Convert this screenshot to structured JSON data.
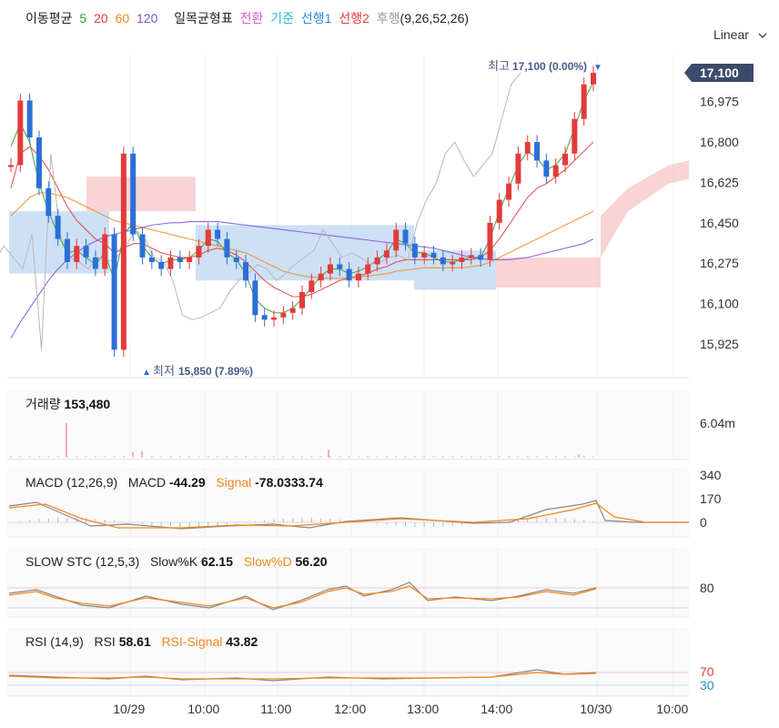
{
  "legend": {
    "ma_title": "이동평균",
    "ma_periods": [
      {
        "label": "5",
        "color": "#2e9e2e"
      },
      {
        "label": "20",
        "color": "#e23b3b"
      },
      {
        "label": "60",
        "color": "#f08a1e"
      },
      {
        "label": "120",
        "color": "#7b4fe0"
      }
    ],
    "ichimoku_title": "일목균형표",
    "ichimoku_items": [
      {
        "label": "전환",
        "color": "#e05ad3"
      },
      {
        "label": "기준",
        "color": "#2bb6d6"
      },
      {
        "label": "선행1",
        "color": "#2b8ad6"
      },
      {
        "label": "선행2",
        "color": "#e23b3b"
      },
      {
        "label": "후행",
        "color": "#9a9a9a"
      }
    ],
    "ichimoku_params": "(9,26,52,26)"
  },
  "scale_button": "Linear",
  "price_axis": {
    "ticks": [
      "17,100",
      "16,975",
      "16,800",
      "16,625",
      "16,450",
      "16,275",
      "16,100",
      "15,925"
    ],
    "current_price_label": "17,100",
    "current_price_color": "#3c4a6b"
  },
  "annotations": {
    "high_label": "최고",
    "high_value": "17,100 (0.00%)",
    "high_marker": "▼",
    "low_label": "최저",
    "low_value": "15,850 (7.89%)",
    "low_marker": "▲"
  },
  "volume_pane": {
    "title": "거래량",
    "value": "153,480",
    "axis_label": "6.04m"
  },
  "macd_pane": {
    "title": "MACD (12,26,9)",
    "macd_label": "MACD",
    "macd_value": "-44.29",
    "signal_label": "Signal",
    "signal_value": "-78.0333.74",
    "axis_ticks": [
      "340",
      "170",
      "0"
    ]
  },
  "stoch_pane": {
    "title": "SLOW STC (12,5,3)",
    "k_label": "Slow%K",
    "k_value": "62.15",
    "d_label": "Slow%D",
    "d_value": "56.20",
    "axis_ticks": [
      "80"
    ]
  },
  "rsi_pane": {
    "title": "RSI (14,9)",
    "rsi_label": "RSI",
    "rsi_value": "58.61",
    "signal_label": "RSI-Signal",
    "signal_value": "43.82",
    "axis_ticks": [
      "70",
      "30"
    ]
  },
  "time_axis": {
    "ticks": [
      "10/29",
      "10:00",
      "11:00",
      "12:00",
      "13:00",
      "14:00",
      "10/30",
      "10:00"
    ]
  },
  "colors": {
    "up": "#e23b3b",
    "down": "#2b6fd6",
    "signal_orange": "#f08a1e",
    "macd_gray": "#8a8a8a",
    "cloud_up": "#f5c6c6",
    "cloud_down": "#bcd6f2",
    "label_navy": "#4a5a8a"
  },
  "chart_data": {
    "type": "candlestick",
    "title": "",
    "ylim": [
      15800,
      17150
    ],
    "close_path": [
      16700,
      16980,
      16820,
      16600,
      16480,
      16380,
      16280,
      16350,
      16300,
      16250,
      16400,
      15900,
      16750,
      16400,
      16300,
      16280,
      16250,
      16300,
      16280,
      16300,
      16350,
      16420,
      16380,
      16300,
      16280,
      16200,
      16050,
      16030,
      16040,
      16060,
      16080,
      16150,
      16200,
      16230,
      16270,
      16250,
      16200,
      16230,
      16270,
      16300,
      16330,
      16420,
      16360,
      16300,
      16320,
      16300,
      16270,
      16280,
      16300,
      16310,
      16290,
      16450,
      16550,
      16620,
      16750,
      16800,
      16720,
      16650,
      16700,
      16750,
      16900,
      17050,
      17100
    ],
    "high": 17100,
    "low": 15850,
    "ma": [
      {
        "name": "5",
        "values": [
          16780,
          16880,
          16800,
          16620,
          16500,
          16400,
          16320,
          16330,
          16300,
          16270,
          16320,
          16200,
          16400,
          16450,
          16350,
          16300,
          16270,
          16290,
          16290,
          16300,
          16330,
          16380,
          16370,
          16320,
          16290,
          16230,
          16120,
          16080,
          16060,
          16060,
          16080,
          16120,
          16170,
          16220,
          16250,
          16250,
          16230,
          16240,
          16260,
          16290,
          16320,
          16380,
          16360,
          16320,
          16320,
          16300,
          16280,
          16280,
          16290,
          16300,
          16300,
          16380,
          16500,
          16600,
          16700,
          16760,
          16730,
          16680,
          16700,
          16750,
          16860,
          16980,
          17060
        ]
      },
      {
        "name": "20",
        "values": [
          16600,
          16750,
          16780,
          16740,
          16680,
          16600,
          16520,
          16460,
          16420,
          16380,
          16360,
          16320,
          16340,
          16360,
          16360,
          16340,
          16320,
          16310,
          16300,
          16300,
          16310,
          16330,
          16340,
          16330,
          16310,
          16280,
          16240,
          16200,
          16170,
          16150,
          16130,
          16130,
          16140,
          16160,
          16180,
          16200,
          16210,
          16220,
          16230,
          16250,
          16260,
          16280,
          16290,
          16290,
          16290,
          16290,
          16290,
          16290,
          16290,
          16290,
          16300,
          16330,
          16380,
          16440,
          16500,
          16560,
          16600,
          16620,
          16650,
          16680,
          16720,
          16760,
          16800
        ]
      },
      {
        "name": "60",
        "values": [
          16480,
          16520,
          16560,
          16580,
          16580,
          16570,
          16560,
          16540,
          16520,
          16500,
          16480,
          16460,
          16450,
          16440,
          16430,
          16420,
          16410,
          16400,
          16390,
          16380,
          16370,
          16360,
          16350,
          16340,
          16330,
          16320,
          16300,
          16280,
          16260,
          16240,
          16230,
          16220,
          16215,
          16210,
          16210,
          16210,
          16210,
          16215,
          16220,
          16225,
          16230,
          16240,
          16245,
          16250,
          16255,
          16255,
          16255,
          16255,
          16255,
          16260,
          16265,
          16280,
          16300,
          16320,
          16340,
          16360,
          16380,
          16400,
          16420,
          16440,
          16460,
          16480,
          16500
        ]
      },
      {
        "name": "120",
        "values": [
          15950,
          16020,
          16080,
          16140,
          16200,
          16250,
          16290,
          16320,
          16350,
          16370,
          16390,
          16400,
          16410,
          16420,
          16430,
          16440,
          16445,
          16450,
          16450,
          16455,
          16455,
          16455,
          16455,
          16450,
          16445,
          16440,
          16435,
          16430,
          16425,
          16420,
          16415,
          16410,
          16405,
          16400,
          16395,
          16390,
          16385,
          16380,
          16375,
          16370,
          16365,
          16360,
          16355,
          16350,
          16345,
          16340,
          16330,
          16320,
          16310,
          16300,
          16295,
          16290,
          16290,
          16290,
          16295,
          16300,
          16310,
          16320,
          16330,
          16340,
          16350,
          16360,
          16380
        ]
      }
    ],
    "volume_axis_max_label": "6.04m",
    "macd_range": [
      -90,
      340
    ],
    "stoch_range": [
      0,
      100
    ],
    "rsi_range": [
      0,
      100
    ]
  }
}
